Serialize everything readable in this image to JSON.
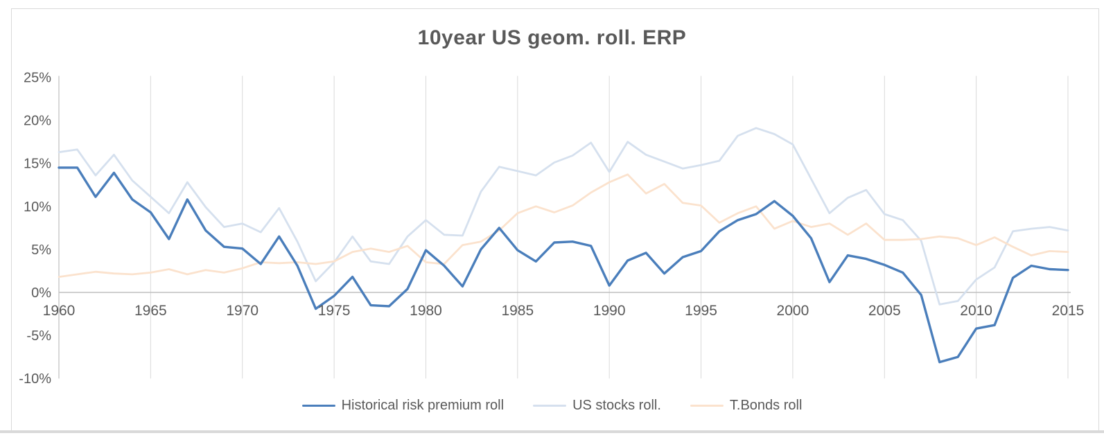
{
  "page": {
    "background": "#ffffff",
    "frame_border_color": "#d9d9d9"
  },
  "chart_data": {
    "type": "line",
    "title": "10year US geom. roll. ERP",
    "xlabel": "",
    "ylabel": "",
    "x_start": 1960,
    "x_end": 2015,
    "x_step": 1,
    "x_tick_labels": [
      "1960",
      "1965",
      "1970",
      "1975",
      "1980",
      "1985",
      "1990",
      "1995",
      "2000",
      "2005",
      "2010",
      "2015"
    ],
    "x_tick_values": [
      1960,
      1965,
      1970,
      1975,
      1980,
      1985,
      1990,
      1995,
      2000,
      2005,
      2010,
      2015
    ],
    "y_tick_labels": [
      "25%",
      "20%",
      "15%",
      "10%",
      "5%",
      "0%",
      "-5%",
      "-10%"
    ],
    "y_tick_values": [
      25,
      20,
      15,
      10,
      5,
      0,
      -5,
      -10
    ],
    "ylim": [
      -10,
      25
    ],
    "grid": "vertical-gridlines-only",
    "legend_position": "bottom-center",
    "axis_color": "#bfbfbf",
    "gridline_color": "#d9d9d9",
    "label_color": "#595959",
    "series": [
      {
        "name": "Historical risk premium roll",
        "color": "#4A7EBB",
        "line_width": 3.4,
        "values": [
          14.5,
          14.5,
          11.1,
          13.9,
          10.8,
          9.3,
          6.2,
          10.8,
          7.2,
          5.3,
          5.1,
          3.3,
          6.5,
          3.1,
          -1.9,
          -0.4,
          1.8,
          -1.5,
          -1.6,
          0.4,
          4.9,
          3.1,
          0.7,
          5.0,
          7.5,
          4.9,
          3.6,
          5.8,
          5.9,
          5.4,
          0.8,
          3.7,
          4.6,
          2.2,
          4.1,
          4.8,
          7.1,
          8.4,
          9.1,
          10.6,
          8.9,
          6.3,
          1.2,
          4.3,
          3.9,
          3.2,
          2.3,
          -0.3,
          -8.1,
          -7.5,
          -4.2,
          -3.8,
          1.7,
          3.1,
          2.7,
          2.6
        ]
      },
      {
        "name": "US stocks roll.",
        "color": "#D5E0EE",
        "line_width": 2.8,
        "values": [
          16.3,
          16.6,
          13.6,
          16.0,
          13.0,
          11.1,
          9.2,
          12.8,
          9.9,
          7.6,
          8.0,
          7.0,
          9.8,
          5.9,
          1.3,
          3.5,
          6.5,
          3.6,
          3.3,
          6.5,
          8.4,
          6.7,
          6.6,
          11.7,
          14.6,
          14.1,
          13.6,
          15.1,
          15.9,
          17.4,
          14.0,
          17.5,
          16.0,
          15.2,
          14.4,
          14.8,
          15.3,
          18.2,
          19.1,
          18.4,
          17.2,
          13.2,
          9.2,
          11.0,
          11.9,
          9.1,
          8.4,
          6.0,
          -1.4,
          -1.0,
          1.5,
          2.9,
          7.1,
          7.4,
          7.6,
          7.2
        ]
      },
      {
        "name": "T.Bonds roll",
        "color": "#FBE2CD",
        "line_width": 2.8,
        "values": [
          1.8,
          2.1,
          2.4,
          2.2,
          2.1,
          2.3,
          2.7,
          2.1,
          2.6,
          2.3,
          2.8,
          3.5,
          3.4,
          3.5,
          3.3,
          3.6,
          4.7,
          5.1,
          4.7,
          5.4,
          3.5,
          3.3,
          5.5,
          5.9,
          7.2,
          9.2,
          10.0,
          9.3,
          10.1,
          11.6,
          12.8,
          13.7,
          11.5,
          12.6,
          10.4,
          10.1,
          8.1,
          9.2,
          10.0,
          7.4,
          8.3,
          7.6,
          8.0,
          6.7,
          8.0,
          6.1,
          6.1,
          6.2,
          6.5,
          6.3,
          5.5,
          6.4,
          5.3,
          4.3,
          4.8,
          4.7
        ]
      }
    ]
  }
}
